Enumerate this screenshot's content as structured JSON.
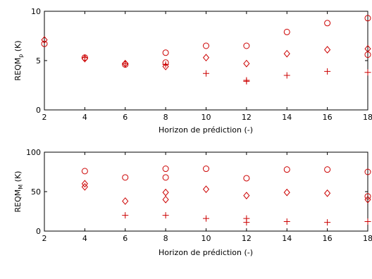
{
  "chart_data": [
    {
      "type": "scatter",
      "xlabel": "Horizon de prédiction (-)",
      "ylabel": "REQM",
      "ylabel_sub": "p",
      "ylabel_unit": " (K)",
      "xlim": [
        2,
        18
      ],
      "ylim": [
        0,
        10
      ],
      "xticks": [
        2,
        4,
        6,
        8,
        10,
        12,
        14,
        16,
        18
      ],
      "yticks": [
        0,
        5,
        10
      ],
      "grid": false,
      "color": "#cc0000",
      "series": [
        {
          "marker": "circle",
          "points": [
            [
              2,
              6.7
            ],
            [
              4,
              5.3
            ],
            [
              6,
              4.6
            ],
            [
              8,
              5.8
            ],
            [
              8,
              4.8
            ],
            [
              10,
              6.5
            ],
            [
              12,
              6.5
            ],
            [
              14,
              7.9
            ],
            [
              16,
              8.8
            ],
            [
              18,
              9.3
            ],
            [
              18,
              5.6
            ]
          ]
        },
        {
          "marker": "diamond",
          "points": [
            [
              2,
              7.1
            ],
            [
              4,
              5.2
            ],
            [
              6,
              4.7
            ],
            [
              8,
              4.4
            ],
            [
              10,
              5.3
            ],
            [
              12,
              4.7
            ],
            [
              14,
              5.7
            ],
            [
              16,
              6.1
            ],
            [
              18,
              6.2
            ]
          ]
        },
        {
          "marker": "plus",
          "points": [
            [
              4,
              5.3
            ],
            [
              6,
              4.7
            ],
            [
              8,
              4.6
            ],
            [
              10,
              3.7
            ],
            [
              12,
              2.9
            ],
            [
              12,
              3.0
            ],
            [
              14,
              3.5
            ],
            [
              16,
              3.9
            ],
            [
              18,
              3.8
            ]
          ]
        }
      ]
    },
    {
      "type": "scatter",
      "xlabel": "Horizon de prédiction (-)",
      "ylabel": "REQM",
      "ylabel_sub": "M",
      "ylabel_unit": " (K)",
      "xlim": [
        2,
        18
      ],
      "ylim": [
        0,
        100
      ],
      "xticks": [
        2,
        4,
        6,
        8,
        10,
        12,
        14,
        16,
        18
      ],
      "yticks": [
        0,
        50,
        100
      ],
      "grid": false,
      "color": "#cc0000",
      "series": [
        {
          "marker": "circle",
          "points": [
            [
              4,
              76
            ],
            [
              6,
              68
            ],
            [
              8,
              79
            ],
            [
              8,
              68
            ],
            [
              10,
              79
            ],
            [
              12,
              67
            ],
            [
              14,
              78
            ],
            [
              16,
              78
            ],
            [
              18,
              75
            ],
            [
              18,
              44
            ]
          ]
        },
        {
          "marker": "diamond",
          "points": [
            [
              4,
              60
            ],
            [
              4,
              56
            ],
            [
              6,
              38
            ],
            [
              8,
              49
            ],
            [
              8,
              40
            ],
            [
              10,
              53
            ],
            [
              12,
              45
            ],
            [
              14,
              49
            ],
            [
              16,
              48
            ],
            [
              18,
              40
            ]
          ]
        },
        {
          "marker": "plus",
          "points": [
            [
              6,
              20
            ],
            [
              8,
              20
            ],
            [
              10,
              16
            ],
            [
              12,
              16
            ],
            [
              12,
              11
            ],
            [
              14,
              12
            ],
            [
              16,
              11
            ],
            [
              18,
              12
            ]
          ]
        }
      ]
    }
  ]
}
